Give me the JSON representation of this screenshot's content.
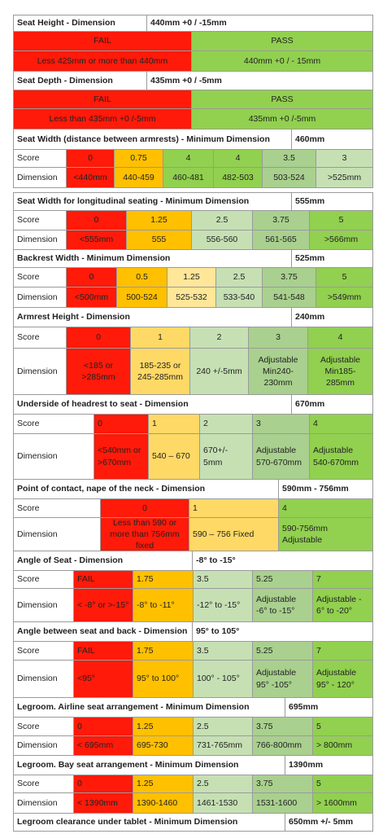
{
  "sections": [
    {
      "title": "Seat Height - Dimension",
      "spec": "440mm +0 / -15mm",
      "rows": [
        {
          "cells": [
            "FAIL",
            "PASS"
          ]
        },
        {
          "cells": [
            "Less 425mm or more than 440mm",
            "440mm +0 / - 15mm"
          ]
        }
      ]
    },
    {
      "title": "Seat Depth - Dimension",
      "spec": "435mm +0 / -5mm",
      "rows": [
        {
          "cells": [
            "FAIL",
            "PASS"
          ]
        },
        {
          "cells": [
            "Less than 435mm +0 /-5mm",
            "435mm +0 /-5mm"
          ]
        }
      ]
    },
    {
      "title": "Seat Width (distance between armrests) - Minimum Dimension",
      "spec": "460mm",
      "rows": [
        {
          "label": "Score",
          "cells": [
            "0",
            "0.75",
            "4",
            "4",
            "3.5",
            "3"
          ]
        },
        {
          "label": "Dimension",
          "cells": [
            "<440mm",
            "440-459",
            "460-481",
            "482-503",
            "503-524",
            ">525mm"
          ]
        }
      ]
    },
    {
      "title": "Seat Width for longitudinal seating - Minimum Dimension",
      "spec": "555mm",
      "rows": [
        {
          "label": "Score",
          "cells": [
            "0",
            "1.25",
            "2.5",
            "3.75",
            "5"
          ]
        },
        {
          "label": "Dimension",
          "cells": [
            "<555mm",
            "555",
            "556-560",
            "561-565",
            ">566mm"
          ]
        }
      ]
    },
    {
      "title": "Backrest Width - Minimum Dimension",
      "spec": "525mm",
      "rows": [
        {
          "label": "Score",
          "cells": [
            "0",
            "0.5",
            "1.25",
            "2.5",
            "3.75",
            "5"
          ]
        },
        {
          "label": "Dimension",
          "cells": [
            "<500mm",
            "500-524",
            "525-532",
            "533-540",
            "541-548",
            ">549mm"
          ]
        }
      ]
    },
    {
      "title": "Armrest Height - Dimension",
      "spec": "240mm",
      "rows": [
        {
          "label": "Score",
          "cells": [
            "0",
            "1",
            "2",
            "3",
            "4"
          ]
        },
        {
          "label": "Dimension",
          "cells": [
            "<185 or >285mm",
            "185-235 or 245-285mm",
            "240 +/-5mm",
            "Adjustable Min240-230mm",
            "Adjustable Min185-285mm"
          ]
        }
      ]
    },
    {
      "title": "Underside of headrest to seat - Dimension",
      "spec": "670mm",
      "rows": [
        {
          "label": "Score",
          "cells": [
            "0",
            "1",
            "2",
            "3",
            "4"
          ]
        },
        {
          "label": "Dimension",
          "cells": [
            "<540mm or >670mm",
            "540 – 670",
            "670+/- 5mm",
            "Adjustable 570-670mm",
            "Adjustable 540-670mm"
          ]
        }
      ]
    },
    {
      "title": "Point of contact, nape of the neck - Dimension",
      "spec": "590mm - 756mm",
      "rows": [
        {
          "label": "Score",
          "cells": [
            "0",
            "1",
            "4"
          ]
        },
        {
          "label": "Dimension",
          "cells": [
            "Less than 590 or more than 756mm fixed",
            "590 – 756 Fixed",
            "590-756mm Adjustable"
          ]
        }
      ]
    },
    {
      "title": "Angle of Seat - Dimension",
      "spec": "-8° to -15°",
      "rows": [
        {
          "label": "Score",
          "cells": [
            "FAIL",
            "1.75",
            "3.5",
            "5.25",
            "7"
          ]
        },
        {
          "label": "Dimension",
          "cells": [
            "< -8° or >-15°",
            "-8° to -11°",
            "-12° to -15°",
            "Adjustable -6° to -15°",
            "Adjustable - 6° to -20°"
          ]
        }
      ]
    },
    {
      "title": "Angle between seat and back - Dimension",
      "spec": "95° to 105°",
      "rows": [
        {
          "label": "Score",
          "cells": [
            "FAIL",
            "1.75",
            "3.5",
            "5.25",
            "7"
          ]
        },
        {
          "label": "Dimension",
          "cells": [
            "<95°",
            "95° to 100°",
            "100° - 105°",
            "Adjustable 95° -105°",
            "Adjustable 95° - 120°"
          ]
        }
      ]
    },
    {
      "title": "Legroom. Airline seat arrangement - Minimum Dimension",
      "spec": "695mm",
      "rows": [
        {
          "label": "Score",
          "cells": [
            "0",
            "1.25",
            "2.5",
            "3.75",
            "5"
          ]
        },
        {
          "label": "Dimension",
          "cells": [
            "< 695mm",
            "695-730",
            "731-765mm",
            "766-800mm",
            "> 800mm"
          ]
        }
      ]
    },
    {
      "title": "Legroom. Bay seat arrangement - Minimum Dimension",
      "spec": "1390mm",
      "rows": [
        {
          "label": "Score",
          "cells": [
            "0",
            "1.25",
            "2.5",
            "3.75",
            "5"
          ]
        },
        {
          "label": "Dimension",
          "cells": [
            "< 1390mm",
            "1390-1460",
            "1461-1530",
            "1531-1600",
            "> 1600mm"
          ]
        }
      ]
    },
    {
      "title": "Legroom clearance under tablet - Minimum Dimension",
      "spec": "650mm +/- 5mm",
      "rows": []
    }
  ]
}
